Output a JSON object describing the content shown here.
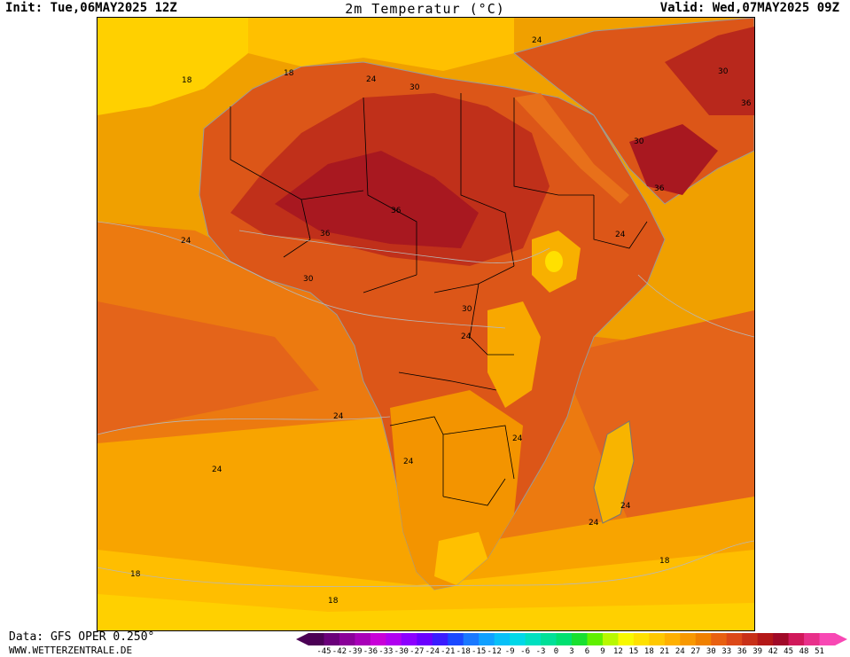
{
  "header": {
    "init": "Init: Tue,06MAY2025 12Z",
    "title": "2m Temperatur (°C)",
    "valid": "Valid: Wed,07MAY2025 09Z"
  },
  "footer": {
    "source": "Data: GFS OPER 0.250°",
    "website": "WWW.WETTERZENTRALE.DE"
  },
  "legend": {
    "unit": "°C",
    "ticks": [
      "-45",
      "-42",
      "-39",
      "-36",
      "-33",
      "-30",
      "-27",
      "-24",
      "-21",
      "-18",
      "-15",
      "-12",
      "-9",
      "-6",
      "-3",
      "0",
      "3",
      "6",
      "9",
      "12",
      "15",
      "18",
      "21",
      "24",
      "27",
      "30",
      "33",
      "36",
      "39",
      "42",
      "45",
      "48",
      "51"
    ],
    "colors": [
      "#4b0055",
      "#6a007a",
      "#8a0099",
      "#a800b8",
      "#c800d8",
      "#b000f0",
      "#8c00ff",
      "#6a00ff",
      "#3a1cff",
      "#1a48ff",
      "#1a78ff",
      "#10a0ff",
      "#08c0f8",
      "#00d8e8",
      "#00e0c0",
      "#00e098",
      "#00e070",
      "#18e030",
      "#60f000",
      "#b8f800",
      "#f8f800",
      "#ffe000",
      "#ffc800",
      "#ffb000",
      "#f89800",
      "#f08000",
      "#e86010",
      "#dc4818",
      "#c83018",
      "#b41818",
      "#a00a28",
      "#d0185a",
      "#e8308a",
      "#f848b4"
    ]
  },
  "isotherm_labels": [
    "18",
    "18",
    "24",
    "30",
    "24",
    "30",
    "36",
    "36",
    "30",
    "36",
    "36",
    "30",
    "24",
    "30",
    "24",
    "24",
    "24",
    "24",
    "24",
    "24",
    "24",
    "24",
    "18",
    "18",
    "18"
  ]
}
